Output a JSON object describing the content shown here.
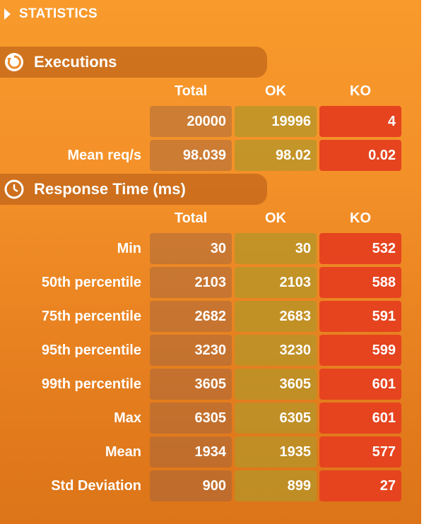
{
  "header": {
    "title": "STATISTICS",
    "expand_icon": "triangle-right-icon"
  },
  "executions": {
    "title": "Executions",
    "icon": "refresh-icon",
    "columns": [
      "Total",
      "OK",
      "KO"
    ],
    "rows": [
      {
        "label": "",
        "total": "20000",
        "ok": "19996",
        "ko": "4"
      },
      {
        "label": "Mean req/s",
        "total": "98.039",
        "ok": "98.02",
        "ko": "0.02"
      }
    ]
  },
  "response_time": {
    "title": "Response Time (ms)",
    "icon": "clock-icon",
    "columns": [
      "Total",
      "OK",
      "KO"
    ],
    "rows": [
      {
        "label": "Min",
        "total": "30",
        "ok": "30",
        "ko": "532"
      },
      {
        "label": "50th percentile",
        "total": "2103",
        "ok": "2103",
        "ko": "588"
      },
      {
        "label": "75th percentile",
        "total": "2682",
        "ok": "2683",
        "ko": "591"
      },
      {
        "label": "95th percentile",
        "total": "3230",
        "ok": "3230",
        "ko": "599"
      },
      {
        "label": "99th percentile",
        "total": "3605",
        "ok": "3605",
        "ko": "601"
      },
      {
        "label": "Max",
        "total": "6305",
        "ok": "6305",
        "ko": "601"
      },
      {
        "label": "Mean",
        "total": "1934",
        "ok": "1935",
        "ko": "577"
      },
      {
        "label": "Std Deviation",
        "total": "900",
        "ok": "899",
        "ko": "27"
      }
    ]
  },
  "colors": {
    "background": "#f39028",
    "ok_cell": "#b4962a",
    "ko_cell": "#e5441f",
    "total_cell": "#c37847"
  }
}
